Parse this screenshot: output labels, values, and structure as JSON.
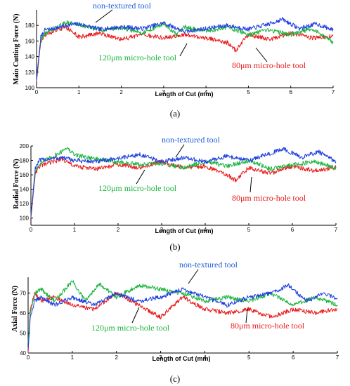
{
  "chart_data": [
    {
      "type": "line",
      "caption": "(a)",
      "ylabel": "Main Cutting Force (N)",
      "xlabel": "Length of Cut (mm)",
      "xlim": [
        0,
        7
      ],
      "ylim": [
        100,
        200
      ],
      "x_ticks": [
        "0",
        "1",
        "2",
        "3",
        "4",
        "5",
        "6",
        "7"
      ],
      "y_ticks": [
        "100",
        "120",
        "140",
        "160",
        "180"
      ],
      "series": [
        {
          "name": "non-textured tool",
          "color": "#1f3fe0",
          "x": [
            0,
            0.1,
            0.2,
            0.4,
            0.7,
            1.0,
            1.5,
            2.0,
            2.5,
            3.0,
            3.5,
            4.0,
            4.5,
            5.0,
            5.5,
            5.8,
            6.2,
            6.6,
            7.0
          ],
          "y": [
            110,
            165,
            174,
            176,
            180,
            182,
            175,
            178,
            176,
            183,
            172,
            176,
            180,
            175,
            182,
            188,
            176,
            182,
            174
          ]
        },
        {
          "name": "120μm micro-hole tool",
          "color": "#19b43c",
          "x": [
            0,
            0.1,
            0.2,
            0.4,
            0.7,
            1.0,
            1.5,
            2.0,
            2.5,
            3.0,
            3.3,
            3.5,
            4.0,
            4.5,
            5.0,
            5.5,
            6.0,
            6.5,
            7.0
          ],
          "y": [
            112,
            162,
            170,
            175,
            184,
            181,
            174,
            177,
            170,
            182,
            168,
            178,
            172,
            178,
            168,
            174,
            168,
            176,
            158
          ]
        },
        {
          "name": "80μm micro-hole tool",
          "color": "#e81c1c",
          "x": [
            0,
            0.1,
            0.2,
            0.4,
            0.7,
            1.0,
            1.5,
            2.0,
            2.5,
            3.0,
            3.5,
            4.0,
            4.5,
            4.7,
            5.0,
            5.5,
            6.0,
            6.5,
            7.0
          ],
          "y": [
            108,
            160,
            168,
            172,
            178,
            165,
            170,
            162,
            168,
            164,
            168,
            164,
            158,
            148,
            168,
            162,
            170,
            164,
            166
          ]
        }
      ],
      "annotations": [
        "non-textured tool",
        "120μm micro-hole tool",
        "80μm micro-hole tool"
      ]
    },
    {
      "type": "line",
      "caption": "(b)",
      "ylabel": "Radial Force (N)",
      "xlabel": "Length of Cut (mm)",
      "xlim": [
        0,
        7
      ],
      "ylim": [
        90,
        200
      ],
      "x_ticks": [
        "0",
        "1",
        "2",
        "3",
        "4",
        "5",
        "6",
        "7"
      ],
      "y_ticks": [
        "100",
        "120",
        "140",
        "160",
        "180",
        "200"
      ],
      "series": [
        {
          "name": "non-textured tool",
          "color": "#1f3fe0",
          "x": [
            0,
            0.1,
            0.2,
            0.4,
            0.7,
            1.0,
            1.5,
            2.0,
            2.5,
            3.0,
            3.5,
            4.0,
            4.5,
            5.0,
            5.5,
            5.8,
            6.2,
            6.6,
            7.0
          ],
          "y": [
            102,
            170,
            180,
            182,
            184,
            180,
            178,
            183,
            188,
            178,
            184,
            178,
            186,
            180,
            190,
            196,
            184,
            192,
            178
          ]
        },
        {
          "name": "120μm micro-hole tool",
          "color": "#19b43c",
          "x": [
            0,
            0.1,
            0.2,
            0.4,
            0.7,
            0.8,
            1.0,
            1.5,
            2.0,
            2.5,
            3.0,
            3.5,
            4.0,
            4.5,
            5.0,
            5.5,
            6.0,
            6.5,
            7.0
          ],
          "y": [
            104,
            165,
            176,
            182,
            192,
            198,
            188,
            182,
            178,
            174,
            176,
            170,
            178,
            172,
            180,
            168,
            174,
            178,
            170
          ]
        },
        {
          "name": "80μm micro-hole tool",
          "color": "#e81c1c",
          "x": [
            0,
            0.1,
            0.2,
            0.4,
            0.7,
            1.0,
            1.5,
            2.0,
            2.5,
            3.0,
            3.5,
            4.0,
            4.5,
            4.7,
            5.0,
            5.5,
            6.0,
            6.5,
            7.0
          ],
          "y": [
            100,
            162,
            172,
            176,
            182,
            172,
            168,
            174,
            170,
            178,
            170,
            172,
            160,
            152,
            170,
            162,
            172,
            166,
            170
          ]
        }
      ],
      "annotations": [
        "non-textured tool",
        "120μm micro-hole tool",
        "80μm micro-hole tool"
      ]
    },
    {
      "type": "line",
      "caption": "(c)",
      "ylabel": "Axial Force (N)",
      "xlabel": "Length of Cut (mm)",
      "xlim": [
        0,
        7
      ],
      "ylim": [
        40,
        78
      ],
      "x_ticks": [
        "0",
        "1",
        "2",
        "3",
        "4",
        "5",
        "6",
        "7"
      ],
      "y_ticks": [
        "40",
        "50",
        "60",
        "70"
      ],
      "series": [
        {
          "name": "non-textured tool",
          "color": "#1f3fe0",
          "x": [
            0,
            0.05,
            0.15,
            0.3,
            0.6,
            1.0,
            1.5,
            2.0,
            2.5,
            3.0,
            3.5,
            4.0,
            4.5,
            5.0,
            5.5,
            5.9,
            6.3,
            6.7,
            7.0
          ],
          "y": [
            42,
            58,
            66,
            68,
            64,
            68,
            64,
            70,
            66,
            68,
            72,
            68,
            64,
            68,
            70,
            74,
            66,
            70,
            67
          ]
        },
        {
          "name": "120μm micro-hole tool",
          "color": "#19b43c",
          "x": [
            0,
            0.05,
            0.15,
            0.3,
            0.6,
            1.0,
            1.3,
            1.6,
            2.0,
            2.5,
            3.0,
            3.5,
            4.0,
            4.5,
            5.0,
            5.5,
            6.0,
            6.5,
            7.0
          ],
          "y": [
            45,
            60,
            70,
            72,
            66,
            76,
            66,
            75,
            68,
            74,
            72,
            70,
            66,
            68,
            66,
            70,
            64,
            68,
            64
          ]
        },
        {
          "name": "80μm micro-hole tool",
          "color": "#e81c1c",
          "x": [
            0,
            0.05,
            0.15,
            0.3,
            0.6,
            1.0,
            1.5,
            2.0,
            2.5,
            3.0,
            3.5,
            4.0,
            4.5,
            5.0,
            5.5,
            6.0,
            6.5,
            7.0
          ],
          "y": [
            40,
            62,
            70,
            66,
            68,
            64,
            62,
            70,
            64,
            58,
            68,
            62,
            60,
            62,
            58,
            62,
            60,
            62
          ]
        }
      ],
      "annotations": [
        "non-textured tool",
        "120μm micro-hole tool",
        "80μm micro-hole tool"
      ]
    }
  ]
}
